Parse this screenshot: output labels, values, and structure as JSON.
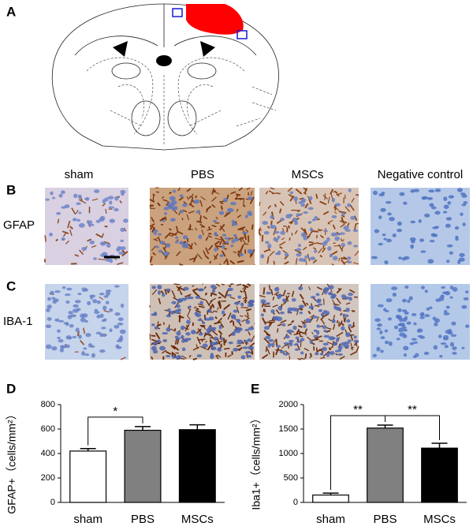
{
  "panel_labels": [
    "A",
    "B",
    "C",
    "D",
    "E"
  ],
  "columns": [
    "sham",
    "PBS",
    "MSCs",
    "Negative control"
  ],
  "rows": [
    "GFAP",
    "IBA-1"
  ],
  "chart_data": [
    {
      "type": "bar",
      "ylabel": "GFAP+（cells/mm²）",
      "categories": [
        "sham",
        "PBS",
        "MSCs"
      ],
      "values": [
        420,
        590,
        595
      ],
      "errors": [
        20,
        30,
        40
      ],
      "colors": [
        "#ffffff",
        "#808080",
        "#000000"
      ],
      "ylim": [
        0,
        800
      ],
      "yticks": [
        0,
        200,
        400,
        600,
        800
      ],
      "annotations": [
        {
          "text": "*",
          "from": 0,
          "to": 1
        }
      ]
    },
    {
      "type": "bar",
      "ylabel": "Iba1+（cells/mm²）",
      "categories": [
        "sham",
        "PBS",
        "MSCs"
      ],
      "values": [
        150,
        1520,
        1110
      ],
      "errors": [
        40,
        60,
        100
      ],
      "colors": [
        "#ffffff",
        "#808080",
        "#000000"
      ],
      "ylim": [
        0,
        2000
      ],
      "yticks": [
        0,
        500,
        1000,
        1500,
        2000
      ],
      "annotations": [
        {
          "text": "**",
          "from": 0,
          "to": 1
        },
        {
          "text": "**",
          "from": 1,
          "to": 2
        }
      ]
    }
  ]
}
